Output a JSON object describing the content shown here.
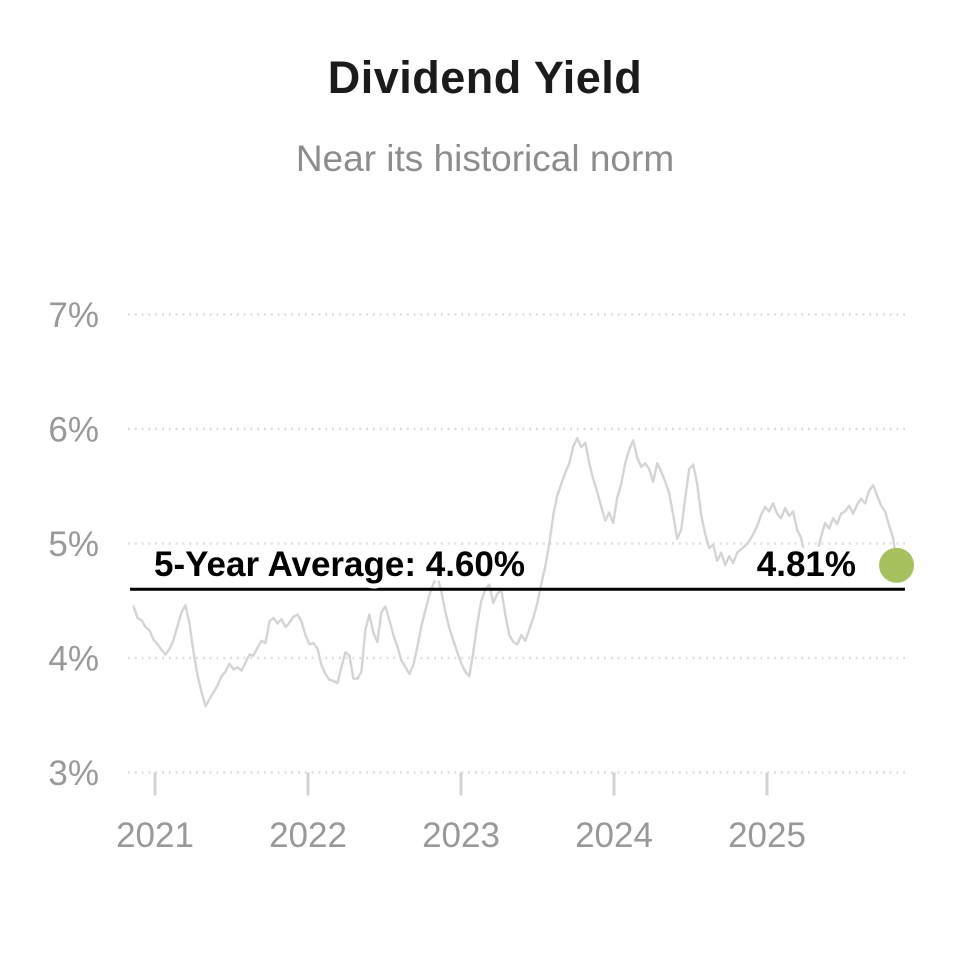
{
  "header": {
    "title": "Dividend Yield",
    "subtitle": "Near its historical norm"
  },
  "colors": {
    "title_text": "#1b1b1b",
    "subtitle_text": "#8d8d8d",
    "axis_text": "#999999",
    "gridline": "#dedede",
    "series_line": "#d4d4d4",
    "average_line": "#000000",
    "accent_green": "#a6c15e"
  },
  "chart_data": {
    "type": "line",
    "title": "Dividend Yield",
    "subtitle": "Near its historical norm",
    "legend": "none",
    "grid": "dotted horizontal gridlines",
    "y_ticks": [
      "7%",
      "6%",
      "5%",
      "4%",
      "3%"
    ],
    "y_tick_values": [
      7,
      6,
      5,
      4,
      3
    ],
    "ylim": [
      3,
      7
    ],
    "x_ticks": [
      "2021",
      "2022",
      "2023",
      "2024",
      "2025"
    ],
    "x_tick_values": [
      2021,
      2022,
      2023,
      2024,
      2025
    ],
    "x_domain": [
      2020.86,
      2025.85
    ],
    "average": {
      "label": "5-Year Average: 4.60%",
      "value": 4.6
    },
    "latest": {
      "label": "4.81%",
      "value": 4.81
    },
    "series": [
      {
        "name": "Dividend Yield",
        "values": [
          4.45,
          4.35,
          4.33,
          4.27,
          4.24,
          4.16,
          4.12,
          4.07,
          4.03,
          4.08,
          4.16,
          4.28,
          4.4,
          4.46,
          4.3,
          4.05,
          3.85,
          3.7,
          3.58,
          3.64,
          3.7,
          3.76,
          3.84,
          3.88,
          3.95,
          3.9,
          3.92,
          3.89,
          3.96,
          4.03,
          4.02,
          4.09,
          4.15,
          4.13,
          4.32,
          4.35,
          4.3,
          4.34,
          4.27,
          4.31,
          4.36,
          4.38,
          4.32,
          4.2,
          4.12,
          4.13,
          4.08,
          3.94,
          3.86,
          3.81,
          3.8,
          3.78,
          3.92,
          4.05,
          4.02,
          3.82,
          3.82,
          3.88,
          4.25,
          4.38,
          4.22,
          4.14,
          4.4,
          4.45,
          4.33,
          4.2,
          4.1,
          3.98,
          3.92,
          3.86,
          3.94,
          4.1,
          4.28,
          4.42,
          4.55,
          4.65,
          4.71,
          4.58,
          4.4,
          4.26,
          4.15,
          4.05,
          3.95,
          3.88,
          3.84,
          4.05,
          4.3,
          4.5,
          4.6,
          4.64,
          4.48,
          4.56,
          4.6,
          4.38,
          4.2,
          4.14,
          4.12,
          4.2,
          4.15,
          4.25,
          4.35,
          4.48,
          4.65,
          4.8,
          5.0,
          5.25,
          5.42,
          5.52,
          5.62,
          5.7,
          5.85,
          5.92,
          5.84,
          5.88,
          5.7,
          5.56,
          5.45,
          5.32,
          5.2,
          5.27,
          5.18,
          5.4,
          5.52,
          5.7,
          5.82,
          5.9,
          5.75,
          5.67,
          5.7,
          5.65,
          5.54,
          5.7,
          5.63,
          5.54,
          5.44,
          5.25,
          5.04,
          5.12,
          5.4,
          5.65,
          5.69,
          5.52,
          5.25,
          5.08,
          4.96,
          4.99,
          4.85,
          4.92,
          4.81,
          4.89,
          4.83,
          4.92,
          4.95,
          4.98,
          5.02,
          5.08,
          5.15,
          5.25,
          5.32,
          5.28,
          5.35,
          5.26,
          5.22,
          5.31,
          5.24,
          5.28,
          5.12,
          5.05,
          4.88,
          4.68,
          4.78,
          4.92,
          5.06,
          5.18,
          5.13,
          5.22,
          5.17,
          5.26,
          5.28,
          5.33,
          5.26,
          5.34,
          5.39,
          5.35,
          5.46,
          5.51,
          5.42,
          5.33,
          5.28,
          5.16,
          5.05,
          4.81
        ]
      }
    ]
  }
}
